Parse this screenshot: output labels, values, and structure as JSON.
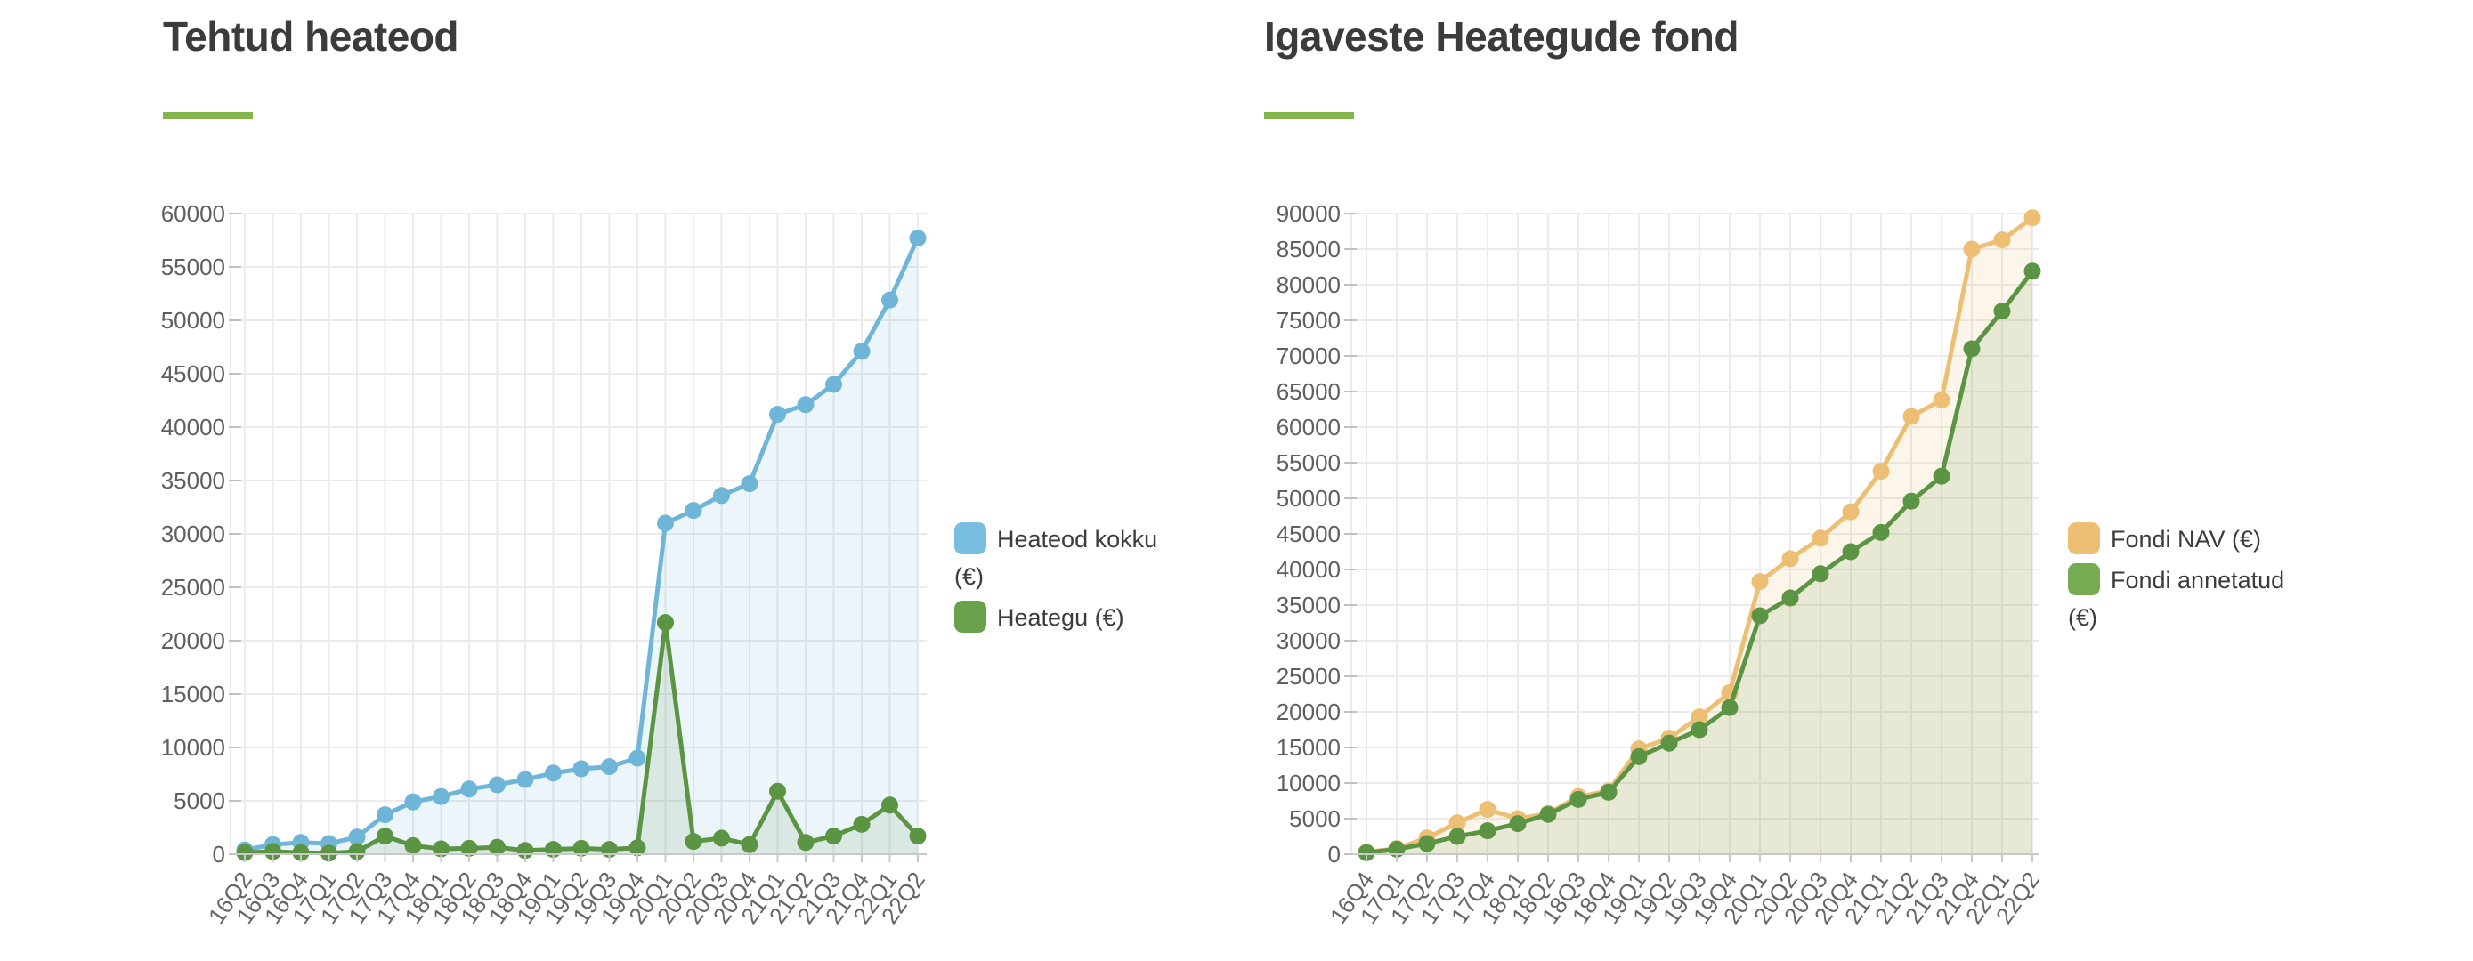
{
  "page_background": "#ffffff",
  "chart_data": [
    {
      "type": "area",
      "title": "Tehtud heateod",
      "accent_color": "#84b54a",
      "grid": true,
      "legend_position": "right",
      "ylim": [
        0,
        60000
      ],
      "ytick_step": 5000,
      "categories": [
        "16Q2",
        "16Q3",
        "16Q4",
        "17Q1",
        "17Q2",
        "17Q3",
        "17Q4",
        "18Q1",
        "18Q2",
        "18Q3",
        "18Q4",
        "19Q1",
        "19Q2",
        "19Q3",
        "19Q4",
        "20Q1",
        "20Q2",
        "20Q3",
        "20Q4",
        "21Q1",
        "21Q2",
        "21Q3",
        "21Q4",
        "22Q1",
        "22Q2"
      ],
      "series": [
        {
          "name": "Heateod kokku (€)",
          "color": "#6fb5d8",
          "swatch": "#79bede",
          "fill": "rgba(111,181,216,0.13)",
          "values": [
            400,
            900,
            1100,
            1000,
            1600,
            3700,
            4900,
            5400,
            6100,
            6500,
            7000,
            7600,
            8000,
            8200,
            9000,
            31000,
            32200,
            33600,
            34700,
            41200,
            42100,
            44000,
            47100,
            51900,
            57700
          ]
        },
        {
          "name": "Heategu (€)",
          "color": "#5b9442",
          "swatch": "#6aa24b",
          "fill": "rgba(91,148,66,0.13)",
          "values": [
            150,
            250,
            150,
            100,
            250,
            1700,
            800,
            500,
            550,
            650,
            350,
            450,
            550,
            450,
            600,
            21700,
            1200,
            1500,
            900,
            5900,
            1100,
            1700,
            2800,
            4600,
            1700
          ]
        }
      ]
    },
    {
      "type": "area",
      "title": "Igaveste Heategude fond",
      "accent_color": "#84b54a",
      "grid": true,
      "legend_position": "right",
      "ylim": [
        0,
        90000
      ],
      "ytick_step": 5000,
      "categories": [
        "16Q4",
        "17Q1",
        "17Q2",
        "17Q3",
        "17Q4",
        "18Q1",
        "18Q2",
        "18Q3",
        "18Q4",
        "19Q1",
        "19Q2",
        "19Q3",
        "19Q4",
        "20Q1",
        "20Q2",
        "20Q3",
        "20Q4",
        "21Q1",
        "21Q2",
        "21Q3",
        "21Q4",
        "22Q1",
        "22Q2"
      ],
      "series": [
        {
          "name": "Fondi NAV (€)",
          "color": "#edbf74",
          "swatch": "#edbf74",
          "fill": "rgba(237,191,116,0.16)",
          "values": [
            300,
            800,
            2300,
            4400,
            6300,
            5000,
            5700,
            8100,
            8900,
            14800,
            16300,
            19300,
            22700,
            38300,
            41500,
            44400,
            48100,
            53800,
            61500,
            63800,
            85000,
            86300,
            89400
          ]
        },
        {
          "name": "Fondi annetatud (€)",
          "color": "#5b9442",
          "swatch": "#76ab51",
          "fill": "rgba(91,148,66,0.12)",
          "values": [
            200,
            700,
            1500,
            2500,
            3300,
            4300,
            5600,
            7700,
            8700,
            13700,
            15600,
            17500,
            20600,
            33500,
            36000,
            39400,
            42500,
            45200,
            49600,
            53100,
            71000,
            76300,
            81900
          ]
        }
      ]
    }
  ]
}
